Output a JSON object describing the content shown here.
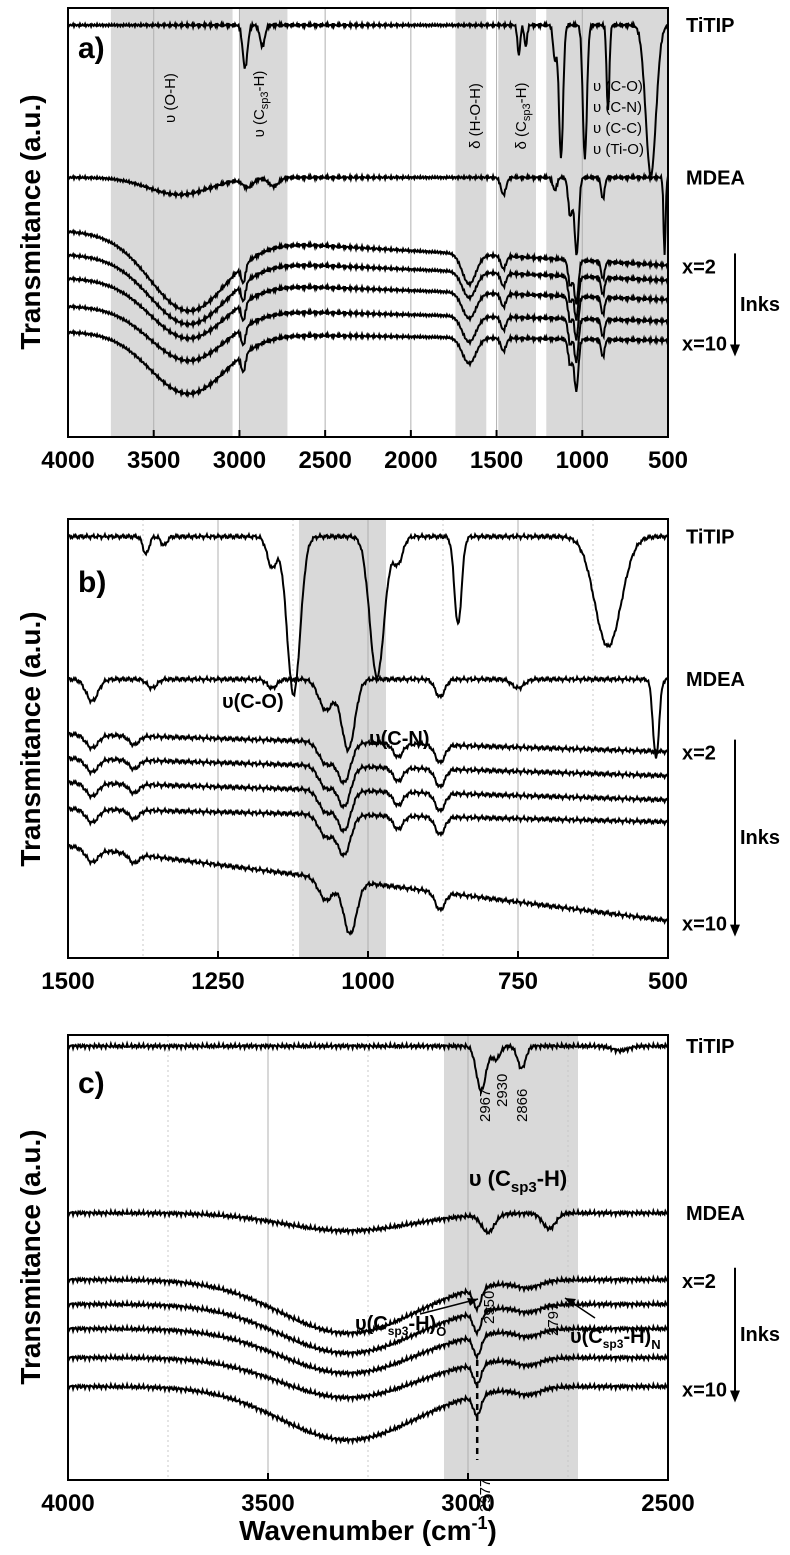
{
  "chart_data": [
    {
      "panel": "a)",
      "type": "line",
      "xlim": [
        4000,
        500
      ],
      "x_ticks": [
        "4000",
        "3500",
        "3000",
        "2500",
        "2000",
        "1500",
        "1000",
        "500"
      ],
      "ylabel": "Transmitance (a.u.)",
      "grid": "vertical",
      "shaded_bands": [
        {
          "from": 3750,
          "to": 3040,
          "label": "υ (O-H)"
        },
        {
          "from": 3000,
          "to": 2720,
          "label": "υ (C",
          "sub": "sp3",
          "label_end": "-H)"
        },
        {
          "from": 1740,
          "to": 1560,
          "label": "δ (H-O-H)"
        },
        {
          "from": 1490,
          "to": 1270,
          "label": "δ (C",
          "sub": "sp3",
          "label_end": "-H)"
        },
        {
          "from": 1210,
          "to": 500,
          "label": ""
        }
      ],
      "assignments": [
        "υ (C-O)",
        "υ (C-N)",
        "υ (C-C)",
        "υ (Ti-O)"
      ],
      "series": [
        {
          "name": "TiTIP",
          "offset": 0.96,
          "slope": 0.0,
          "peaks": [
            [
              2967,
              0.1,
              14
            ],
            [
              2866,
              0.05,
              14
            ],
            [
              1370,
              0.07,
              8
            ],
            [
              1330,
              0.05,
              8
            ],
            [
              1160,
              0.08,
              10
            ],
            [
              1124,
              0.31,
              12
            ],
            [
              985,
              0.31,
              12
            ],
            [
              850,
              0.2,
              8
            ],
            [
              600,
              0.35,
              30
            ]
          ]
        },
        {
          "name": "MDEA",
          "offset": 0.605,
          "slope": 0.0,
          "peaks": [
            [
              3350,
              0.04,
              180
            ],
            [
              2950,
              0.02,
              30
            ],
            [
              2800,
              0.02,
              30
            ],
            [
              1460,
              0.04,
              15
            ],
            [
              1160,
              0.03,
              12
            ],
            [
              1070,
              0.09,
              12
            ],
            [
              1033,
              0.18,
              12
            ],
            [
              880,
              0.05,
              10
            ],
            [
              520,
              0.18,
              6
            ]
          ]
        },
        {
          "name": "",
          "offset": 0.48,
          "slope": -0.08,
          "peaks": [
            [
              3300,
              0.17,
              220
            ],
            [
              2977,
              0.04,
              12
            ],
            [
              1660,
              0.07,
              40
            ],
            [
              1460,
              0.03,
              15
            ],
            [
              1070,
              0.06,
              12
            ],
            [
              1035,
              0.1,
              12
            ],
            [
              880,
              0.04,
              10
            ]
          ]
        },
        {
          "name": "",
          "offset": 0.425,
          "slope": -0.06,
          "peaks": [
            [
              3300,
              0.15,
              220
            ],
            [
              2977,
              0.04,
              12
            ],
            [
              1660,
              0.06,
              40
            ],
            [
              1460,
              0.03,
              15
            ],
            [
              1070,
              0.06,
              12
            ],
            [
              1035,
              0.1,
              12
            ],
            [
              880,
              0.04,
              10
            ]
          ]
        },
        {
          "name": "",
          "offset": 0.37,
          "slope": -0.05,
          "peaks": [
            [
              3300,
              0.13,
              220
            ],
            [
              2977,
              0.04,
              12
            ],
            [
              1660,
              0.06,
              40
            ],
            [
              1460,
              0.03,
              15
            ],
            [
              1070,
              0.06,
              12
            ],
            [
              1035,
              0.1,
              12
            ],
            [
              880,
              0.04,
              10
            ]
          ]
        },
        {
          "name": "",
          "offset": 0.305,
          "slope": -0.035,
          "peaks": [
            [
              3300,
              0.12,
              220
            ],
            [
              2977,
              0.04,
              12
            ],
            [
              1660,
              0.06,
              40
            ],
            [
              1460,
              0.03,
              15
            ],
            [
              1070,
              0.06,
              12
            ],
            [
              1035,
              0.1,
              12
            ],
            [
              880,
              0.04,
              10
            ]
          ]
        },
        {
          "name": "",
          "offset": 0.245,
          "slope": -0.02,
          "peaks": [
            [
              3300,
              0.14,
              220
            ],
            [
              2977,
              0.04,
              12
            ],
            [
              1660,
              0.06,
              40
            ],
            [
              1460,
              0.03,
              15
            ],
            [
              1070,
              0.06,
              12
            ],
            [
              1035,
              0.12,
              12
            ],
            [
              880,
              0.04,
              10
            ]
          ]
        }
      ],
      "ink_labels": {
        "first": "x=2",
        "last": "x=10",
        "group": "Inks"
      }
    },
    {
      "panel": "b)",
      "type": "line",
      "xlim": [
        1500,
        500
      ],
      "x_ticks": [
        "1500",
        "1250",
        "1000",
        "750",
        "500"
      ],
      "ylabel": "Transmitance (a.u.)",
      "grid": "vertical",
      "shaded_bands": [
        {
          "from": 1115,
          "to": 970,
          "label": ""
        }
      ],
      "annotations": [
        "υ(C-O)",
        "υ(C-N)"
      ],
      "series": [
        {
          "name": "TiTIP",
          "offset": 0.96,
          "slope": 0.0,
          "peaks": [
            [
              1370,
              0.04,
              5
            ],
            [
              1340,
              0.02,
              5
            ],
            [
              1160,
              0.07,
              8
            ],
            [
              1124,
              0.36,
              11
            ],
            [
              985,
              0.32,
              12
            ],
            [
              950,
              0.06,
              8
            ],
            [
              850,
              0.2,
              6
            ],
            [
              600,
              0.25,
              22
            ]
          ]
        },
        {
          "name": "MDEA",
          "offset": 0.635,
          "slope": 0.0,
          "peaks": [
            [
              1460,
              0.05,
              10
            ],
            [
              1360,
              0.02,
              8
            ],
            [
              1160,
              0.02,
              8
            ],
            [
              1070,
              0.07,
              12
            ],
            [
              1033,
              0.16,
              11
            ],
            [
              880,
              0.04,
              8
            ],
            [
              750,
              0.02,
              10
            ],
            [
              520,
              0.18,
              5
            ]
          ]
        },
        {
          "name": "",
          "offset": 0.51,
          "slope": -0.04,
          "peaks": [
            [
              1460,
              0.03,
              10
            ],
            [
              1390,
              0.02,
              8
            ],
            [
              1070,
              0.05,
              12
            ],
            [
              1040,
              0.09,
              11
            ],
            [
              950,
              0.03,
              8
            ],
            [
              880,
              0.04,
              8
            ]
          ]
        },
        {
          "name": "",
          "offset": 0.455,
          "slope": -0.04,
          "peaks": [
            [
              1460,
              0.03,
              10
            ],
            [
              1390,
              0.02,
              8
            ],
            [
              1070,
              0.05,
              12
            ],
            [
              1040,
              0.09,
              11
            ],
            [
              950,
              0.03,
              8
            ],
            [
              880,
              0.04,
              8
            ]
          ]
        },
        {
          "name": "",
          "offset": 0.4,
          "slope": -0.04,
          "peaks": [
            [
              1460,
              0.03,
              10
            ],
            [
              1390,
              0.02,
              8
            ],
            [
              1070,
              0.05,
              12
            ],
            [
              1040,
              0.09,
              11
            ],
            [
              950,
              0.03,
              8
            ],
            [
              880,
              0.04,
              8
            ]
          ]
        },
        {
          "name": "",
          "offset": 0.34,
          "slope": -0.03,
          "peaks": [
            [
              1460,
              0.03,
              10
            ],
            [
              1390,
              0.02,
              8
            ],
            [
              1070,
              0.05,
              12
            ],
            [
              1040,
              0.09,
              11
            ],
            [
              950,
              0.03,
              8
            ],
            [
              880,
              0.04,
              8
            ]
          ]
        },
        {
          "name": "",
          "offset": 0.255,
          "slope": -0.17,
          "peaks": [
            [
              1460,
              0.03,
              10
            ],
            [
              1390,
              0.02,
              8
            ],
            [
              1070,
              0.05,
              12
            ],
            [
              1030,
              0.12,
              11
            ],
            [
              880,
              0.04,
              8
            ]
          ]
        }
      ],
      "ink_labels": {
        "first": "x=2",
        "last": "x=10",
        "group": "Inks"
      }
    },
    {
      "panel": "c)",
      "type": "line",
      "xlim": [
        4000,
        2500
      ],
      "x_ticks": [
        "4000",
        "3500",
        "3000",
        "2500"
      ],
      "xlabel": "Wavenumber (cm-1)",
      "ylabel": "Transmitance (a.u.)",
      "grid": "vertical",
      "shaded_bands": [
        {
          "from": 3060,
          "to": 2725,
          "label": "υ (C",
          "sub": "sp3",
          "label_end": "-H)"
        }
      ],
      "peak_labels": [
        "2967",
        "2930",
        "2866",
        "2950",
        "2797",
        "2977"
      ],
      "annotations": [
        {
          "text": "υ(C",
          "sub": "sp3",
          "end": "-H)",
          "subscript_end": "O"
        },
        {
          "text": "υ(C",
          "sub": "sp3",
          "end": "-H)",
          "subscript_end": "N"
        }
      ],
      "series": [
        {
          "name": "TiTIP",
          "offset": 0.975,
          "slope": 0.0,
          "peaks": [
            [
              2967,
              0.1,
              12
            ],
            [
              2930,
              0.03,
              10
            ],
            [
              2866,
              0.05,
              10
            ],
            [
              2620,
              0.01,
              20
            ]
          ]
        },
        {
          "name": "MDEA",
          "offset": 0.6,
          "slope": 0.0,
          "peaks": [
            [
              3300,
              0.04,
              160
            ],
            [
              2950,
              0.04,
              16
            ],
            [
              2797,
              0.035,
              16
            ]
          ]
        },
        {
          "name": "",
          "offset": 0.45,
          "slope": 0.0,
          "peaks": [
            [
              3300,
              0.12,
              170
            ],
            [
              2977,
              0.045,
              10
            ],
            [
              2850,
              0.015,
              30
            ]
          ]
        },
        {
          "name": "",
          "offset": 0.395,
          "slope": 0.0,
          "peaks": [
            [
              3300,
              0.11,
              170
            ],
            [
              2977,
              0.045,
              10
            ],
            [
              2850,
              0.015,
              30
            ]
          ]
        },
        {
          "name": "",
          "offset": 0.34,
          "slope": 0.0,
          "peaks": [
            [
              3300,
              0.1,
              170
            ],
            [
              2977,
              0.045,
              10
            ],
            [
              2850,
              0.015,
              30
            ]
          ]
        },
        {
          "name": "",
          "offset": 0.275,
          "slope": 0.0,
          "peaks": [
            [
              3300,
              0.09,
              170
            ],
            [
              2977,
              0.045,
              10
            ],
            [
              2850,
              0.015,
              30
            ]
          ]
        },
        {
          "name": "",
          "offset": 0.21,
          "slope": 0.0,
          "peaks": [
            [
              3300,
              0.12,
              170
            ],
            [
              2977,
              0.045,
              10
            ],
            [
              2850,
              0.015,
              30
            ]
          ]
        }
      ],
      "ink_labels": {
        "first": "x=2",
        "last": "x=10",
        "group": "Inks"
      }
    }
  ]
}
